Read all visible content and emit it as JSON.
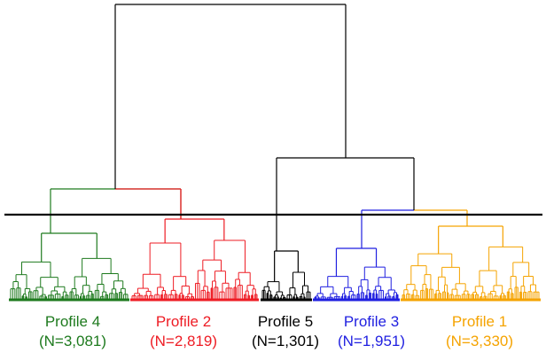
{
  "figure": {
    "clusters": [
      {
        "id": "p4",
        "name": "Profile 4",
        "n": "(N=3,081)",
        "color": "#1e7a1e"
      },
      {
        "id": "p2",
        "name": "Profile 2",
        "n": "(N=2,819)",
        "color": "#ee1c24"
      },
      {
        "id": "p5",
        "name": "Profile 5",
        "n": "(N=1,301)",
        "color": "#000000"
      },
      {
        "id": "p3",
        "name": "Profile 3",
        "n": "(N=1,951)",
        "color": "#1f1fe0"
      },
      {
        "id": "p1",
        "name": "Profile 1",
        "n": "(N=3,330)",
        "color": "#f5a300"
      }
    ],
    "tree_color": "#000000",
    "cut_line_color": "#000000"
  }
}
